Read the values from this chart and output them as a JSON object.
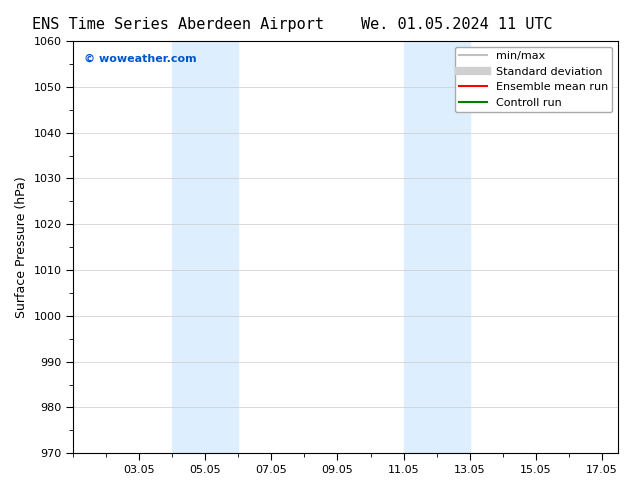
{
  "title_left": "ENS Time Series Aberdeen Airport",
  "title_right": "We. 01.05.2024 11 UTC",
  "ylabel": "Surface Pressure (hPa)",
  "ylim": [
    970,
    1060
  ],
  "yticks": [
    970,
    980,
    990,
    1000,
    1010,
    1020,
    1030,
    1040,
    1050,
    1060
  ],
  "xlim_start": 1.0,
  "xlim_end": 17.5,
  "xtick_labels": [
    "03.05",
    "05.05",
    "07.05",
    "09.05",
    "11.05",
    "13.05",
    "15.05",
    "17.05"
  ],
  "xtick_positions": [
    3,
    5,
    7,
    9,
    11,
    13,
    15,
    17
  ],
  "shaded_bands": [
    {
      "x_start": 4.0,
      "x_end": 6.0
    },
    {
      "x_start": 11.0,
      "x_end": 13.0
    }
  ],
  "shaded_color": "#ddeeff",
  "background_color": "#ffffff",
  "watermark_text": "© woweather.com",
  "watermark_color": "#0055cc",
  "legend_entries": [
    {
      "label": "min/max",
      "color": "#c0c0c0",
      "linestyle": "-",
      "linewidth": 1.5
    },
    {
      "label": "Standard deviation",
      "color": "#d0d0d0",
      "linestyle": "-",
      "linewidth": 6
    },
    {
      "label": "Ensemble mean run",
      "color": "#ff0000",
      "linestyle": "-",
      "linewidth": 1.5
    },
    {
      "label": "Controll run",
      "color": "#008000",
      "linestyle": "-",
      "linewidth": 1.5
    }
  ],
  "title_fontsize": 11,
  "ylabel_fontsize": 9,
  "tick_fontsize": 8,
  "legend_fontsize": 8,
  "fig_width": 6.34,
  "fig_height": 4.9,
  "dpi": 100
}
